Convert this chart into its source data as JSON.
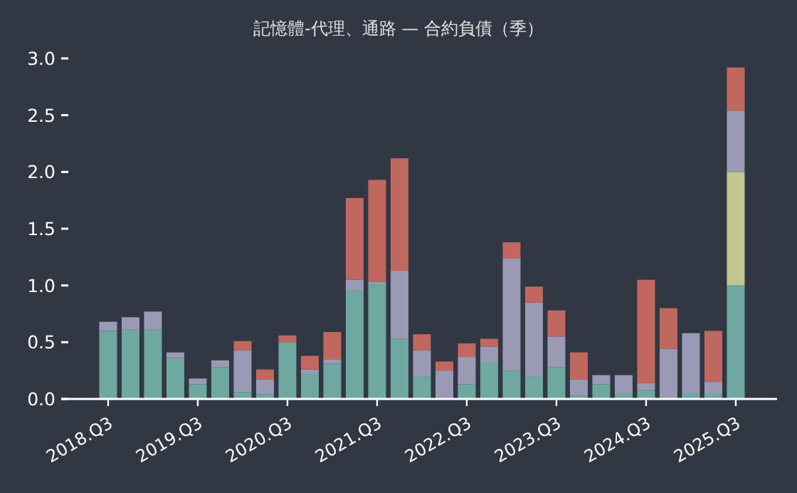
{
  "chart_data": {
    "type": "bar",
    "title": "記憶體-代理、通路 — 合約負債（季）",
    "stacked": true,
    "categories": [
      "2018.Q3",
      null,
      null,
      null,
      "2019.Q3",
      null,
      null,
      null,
      "2020.Q3",
      null,
      null,
      null,
      "2021.Q3",
      null,
      null,
      null,
      "2022.Q3",
      null,
      null,
      null,
      "2023.Q3",
      null,
      null,
      null,
      "2024.Q3",
      null,
      null,
      null,
      "2025.Q3"
    ],
    "ylim": [
      0,
      3.0
    ],
    "yticks": [
      {
        "value": 0,
        "label": "0.0"
      },
      {
        "value": 0.5,
        "label": "0.5"
      },
      {
        "value": 1.0,
        "label": "1.0"
      },
      {
        "value": 1.5,
        "label": "1.5"
      },
      {
        "value": 2.0,
        "label": "2.0"
      },
      {
        "value": 2.5,
        "label": "2.5"
      },
      {
        "value": 3.0,
        "label": "3.0"
      }
    ],
    "series": [
      {
        "color": "#6fa8a0",
        "values": [
          0.6,
          0.61,
          0.61,
          0.36,
          0.13,
          0.28,
          0.06,
          0.04,
          0.49,
          0.22,
          0.31,
          0.96,
          1.01,
          0.53,
          0.2,
          null,
          0.13,
          0.32,
          0.25,
          0.2,
          0.28,
          0.03,
          0.13,
          0.05,
          0.08,
          null,
          0.05,
          0.05,
          1.0
        ]
      },
      {
        "color": "#c2c690",
        "values": [
          null,
          null,
          null,
          null,
          null,
          null,
          null,
          null,
          null,
          null,
          null,
          null,
          null,
          null,
          null,
          null,
          null,
          null,
          null,
          null,
          null,
          null,
          null,
          null,
          null,
          null,
          null,
          null,
          1.0
        ]
      },
      {
        "color": "#9a9ab5",
        "values": [
          0.08,
          0.11,
          0.16,
          0.05,
          0.05,
          0.06,
          0.37,
          0.13,
          0.01,
          0.04,
          0.04,
          0.09,
          0.02,
          0.6,
          0.23,
          0.25,
          0.24,
          0.14,
          0.99,
          0.65,
          0.27,
          0.14,
          0.08,
          0.16,
          0.06,
          0.44,
          0.53,
          0.1,
          0.54
        ]
      },
      {
        "color": "#c0675f",
        "values": [
          null,
          null,
          null,
          null,
          null,
          null,
          0.08,
          0.09,
          0.06,
          0.12,
          0.24,
          0.72,
          0.9,
          0.99,
          0.14,
          0.08,
          0.12,
          0.07,
          0.14,
          0.14,
          0.23,
          0.24,
          null,
          null,
          0.91,
          0.36,
          null,
          0.45,
          0.38
        ]
      }
    ]
  }
}
